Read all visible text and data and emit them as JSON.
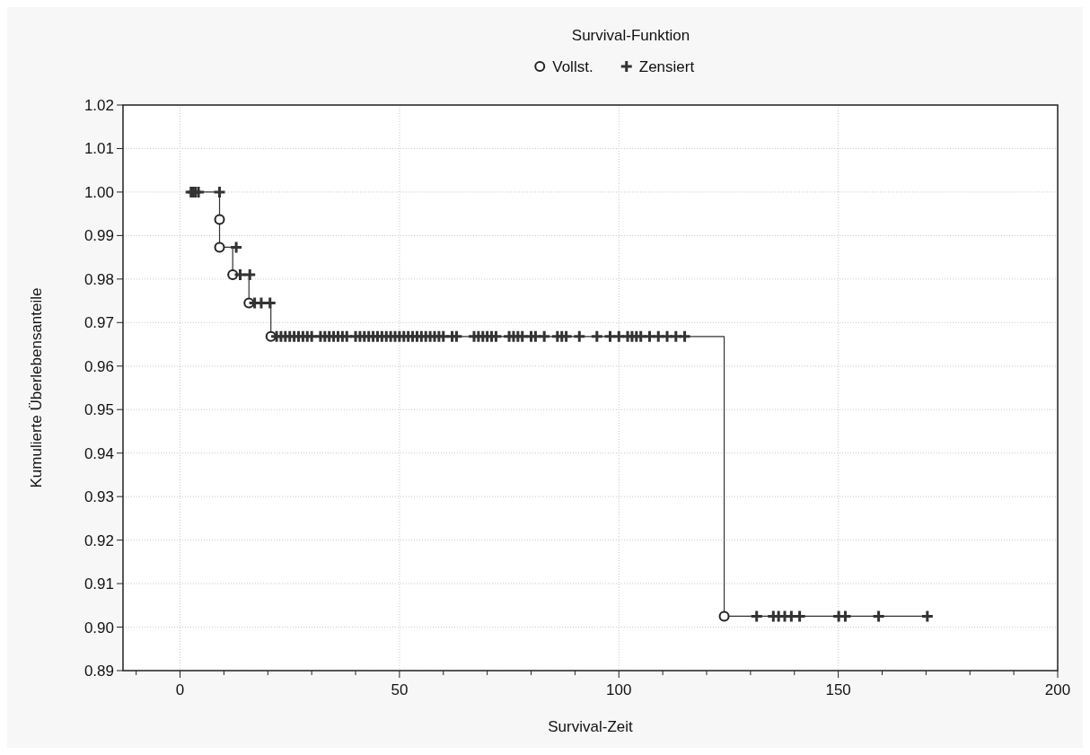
{
  "chart_data": {
    "type": "step",
    "legend_title": "Survival-Funktion",
    "xlabel": "Survival-Zeit",
    "ylabel": "Kumulierte Überlebensanteile",
    "xlim": [
      -13,
      200
    ],
    "ylim": [
      0.89,
      1.02
    ],
    "xticks": [
      0,
      {
        "value": 10,
        "label": null
      },
      {
        "value": 20,
        "label": null
      },
      {
        "value": 30,
        "label": null
      },
      {
        "value": 40,
        "label": null
      },
      50,
      {
        "value": 60,
        "label": null
      },
      {
        "value": 70,
        "label": null
      },
      {
        "value": 80,
        "label": null
      },
      {
        "value": 90,
        "label": null
      },
      100,
      {
        "value": 110,
        "label": null
      },
      {
        "value": 120,
        "label": null
      },
      {
        "value": 130,
        "label": null
      },
      {
        "value": 140,
        "label": null
      },
      150,
      {
        "value": 160,
        "label": null
      },
      {
        "value": 170,
        "label": null
      },
      {
        "value": 180,
        "label": null
      },
      {
        "value": 190,
        "label": null
      },
      200,
      {
        "value": -10,
        "label": null
      }
    ],
    "yticks": [
      0.89,
      {
        "value": 0.9,
        "label": "0.90"
      },
      0.91,
      0.92,
      0.93,
      0.94,
      0.95,
      0.96,
      0.97,
      0.98,
      0.99,
      {
        "value": 1,
        "label": "1.00"
      },
      1.01,
      1.02
    ],
    "grid": true,
    "legend": "top",
    "line_style": "solid",
    "series": [
      {
        "color": "#333333",
        "marker": "none",
        "x": [
          2.5,
          9,
          9,
          12,
          15.7,
          20.7,
          124,
          170.3
        ],
        "values": [
          1,
          0.9937,
          0.9873,
          0.981,
          0.9745,
          0.9668,
          0.9025,
          0.9025
        ]
      },
      {
        "type": "scatter",
        "name": "Vollst.",
        "color": "#222222",
        "marker": "circle",
        "x": [
          9,
          9,
          12,
          15.7,
          20.7,
          124
        ],
        "values": [
          0.9937,
          0.9873,
          0.981,
          0.9745,
          0.9668,
          0.9025
        ]
      },
      {
        "type": "scatter",
        "name": "Zensiert",
        "color": "#333333",
        "marker": "cross",
        "x": [
          2.5,
          3,
          3.5,
          4.2,
          9,
          12.8,
          13.7,
          15.9,
          17,
          18.5,
          20.5,
          22,
          23,
          24,
          25,
          26,
          27,
          28,
          29,
          30,
          32,
          33,
          34,
          35,
          36,
          37,
          38,
          40,
          41,
          42,
          43,
          44,
          45,
          46,
          47,
          48,
          49,
          50,
          51,
          52,
          53,
          54,
          55,
          56,
          57,
          58,
          59,
          60,
          62,
          63,
          67,
          68,
          69,
          70,
          71,
          72,
          75,
          76,
          77,
          78,
          80,
          81,
          83,
          86,
          87,
          88,
          91,
          95,
          98,
          100,
          102,
          103,
          104,
          105,
          107,
          109,
          111,
          113,
          115,
          131.4,
          135.2,
          136.4,
          137.8,
          139.3,
          141.2,
          150.1,
          151.6,
          159.2,
          170.3
        ],
        "values": [
          1,
          1,
          1,
          1,
          1,
          0.9873,
          0.981,
          0.981,
          0.9745,
          0.9745,
          0.9745,
          0.9668,
          0.9668,
          0.9668,
          0.9668,
          0.9668,
          0.9668,
          0.9668,
          0.9668,
          0.9668,
          0.9668,
          0.9668,
          0.9668,
          0.9668,
          0.9668,
          0.9668,
          0.9668,
          0.9668,
          0.9668,
          0.9668,
          0.9668,
          0.9668,
          0.9668,
          0.9668,
          0.9668,
          0.9668,
          0.9668,
          0.9668,
          0.9668,
          0.9668,
          0.9668,
          0.9668,
          0.9668,
          0.9668,
          0.9668,
          0.9668,
          0.9668,
          0.9668,
          0.9668,
          0.9668,
          0.9668,
          0.9668,
          0.9668,
          0.9668,
          0.9668,
          0.9668,
          0.9668,
          0.9668,
          0.9668,
          0.9668,
          0.9668,
          0.9668,
          0.9668,
          0.9668,
          0.9668,
          0.9668,
          0.9668,
          0.9668,
          0.9668,
          0.9668,
          0.9668,
          0.9668,
          0.9668,
          0.9668,
          0.9668,
          0.9668,
          0.9668,
          0.9668,
          0.9668,
          0.9025,
          0.9025,
          0.9025,
          0.9025,
          0.9025,
          0.9025,
          0.9025,
          0.9025,
          0.9025,
          0.9025
        ]
      }
    ]
  }
}
